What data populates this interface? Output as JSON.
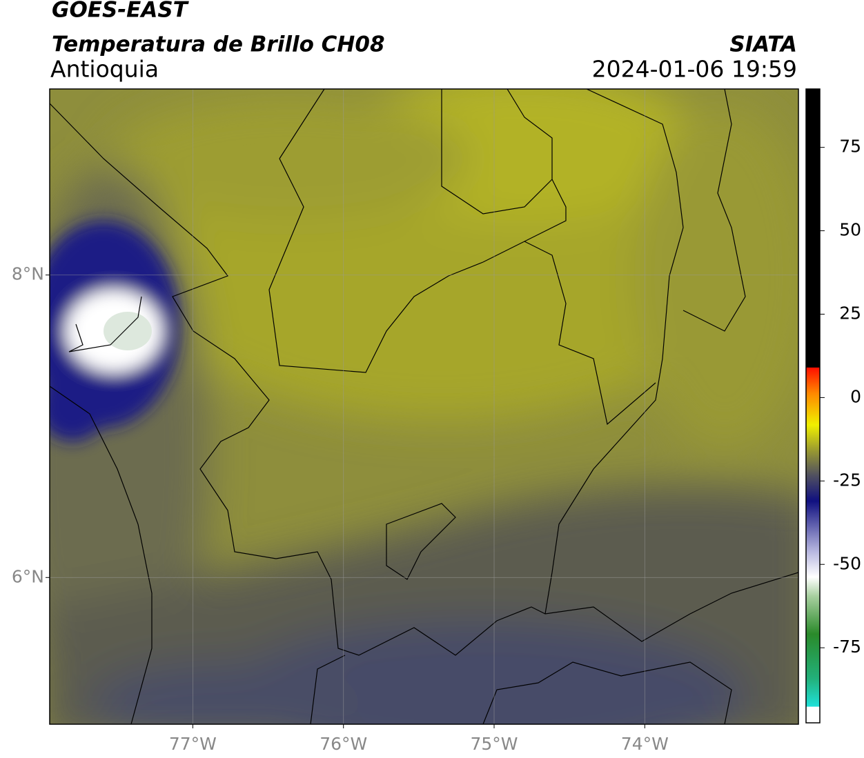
{
  "title": "GOES-EAST",
  "subtitle": "Temperatura de Brillo CH08",
  "region": "Antioquia",
  "source": "SIATA",
  "datetime": "2024-01-06 19:59",
  "map": {
    "xlim": [
      -77.95,
      -72.98
    ],
    "ylim": [
      5.03,
      9.23
    ],
    "xticks": [
      {
        "value": -77,
        "label": "77°W"
      },
      {
        "value": -76,
        "label": "76°W"
      },
      {
        "value": -75,
        "label": "75°W"
      },
      {
        "value": -74,
        "label": "74°W"
      }
    ],
    "yticks": [
      {
        "value": 8,
        "label": "8°N"
      },
      {
        "value": 6,
        "label": "6°N"
      }
    ],
    "grid": true
  },
  "colorbar": {
    "ylim": [
      -97.5,
      92.5
    ],
    "yticks": [
      75,
      50,
      25,
      0,
      -25,
      -50,
      -75
    ]
  }
}
